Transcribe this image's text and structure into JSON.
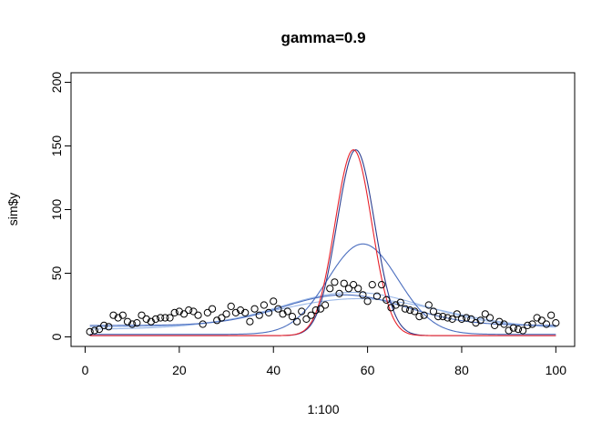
{
  "chart_data": {
    "type": "scatter",
    "title": "gamma=0.9",
    "xlabel": "1:100",
    "ylabel": "sim$y",
    "xlim": [
      -3,
      104
    ],
    "ylim": [
      -7.5,
      207.5
    ],
    "x_ticks": [
      0,
      20,
      40,
      60,
      80,
      100
    ],
    "y_ticks": [
      0,
      50,
      100,
      150,
      200
    ],
    "grid": false,
    "legend": "none",
    "colors": {
      "points": "#000000",
      "red_curve": "#e8202a",
      "dark_blue_curve": "#2b3d8f",
      "mid_blue_curve": "#4c6fbf",
      "light_blue_curve": "#9bb8e8"
    },
    "points": {
      "x": [
        1,
        2,
        3,
        4,
        5,
        6,
        7,
        8,
        9,
        10,
        11,
        12,
        13,
        14,
        15,
        16,
        17,
        18,
        19,
        20,
        21,
        22,
        23,
        24,
        25,
        26,
        27,
        28,
        29,
        30,
        31,
        32,
        33,
        34,
        35,
        36,
        37,
        38,
        39,
        40,
        41,
        42,
        43,
        44,
        45,
        46,
        47,
        48,
        49,
        50,
        51,
        52,
        53,
        54,
        55,
        56,
        57,
        58,
        59,
        60,
        61,
        62,
        63,
        64,
        65,
        66,
        67,
        68,
        69,
        70,
        71,
        72,
        73,
        74,
        75,
        76,
        77,
        78,
        79,
        80,
        81,
        82,
        83,
        84,
        85,
        86,
        87,
        88,
        89,
        90,
        91,
        92,
        93,
        94,
        95,
        96,
        97,
        98,
        99,
        100
      ],
      "y": [
        4,
        5,
        6,
        9,
        8,
        17,
        15,
        17,
        12,
        10,
        11,
        17,
        14,
        12,
        14,
        15,
        15,
        15,
        19,
        20,
        18,
        21,
        20,
        17,
        10,
        19,
        22,
        13,
        15,
        18,
        24,
        19,
        21,
        19,
        12,
        22,
        17,
        25,
        19,
        28,
        22,
        18,
        20,
        16,
        12,
        20,
        14,
        17,
        21,
        22,
        25,
        38,
        43,
        34,
        42,
        38,
        41,
        38,
        33,
        28,
        41,
        32,
        41,
        29,
        23,
        25,
        27,
        22,
        21,
        20,
        16,
        17,
        25,
        20,
        16,
        16,
        15,
        14,
        18,
        14,
        15,
        14,
        11,
        13,
        18,
        15,
        9,
        12,
        10,
        5,
        7,
        6,
        5,
        9,
        10,
        15,
        13,
        10,
        17,
        11
      ]
    },
    "series": [
      {
        "color_key": "red_curve",
        "peak_x": 57,
        "peak_y": 147,
        "baseline": 1,
        "sd": 3.9
      },
      {
        "color_key": "dark_blue_curve",
        "peak_x": 57.5,
        "peak_y": 147,
        "baseline": 1,
        "sd": 4.0
      },
      {
        "color_key": "mid_blue_curve",
        "peak_x": 59,
        "peak_y": 73,
        "baseline": 2,
        "sd": 7.5
      },
      {
        "color_key": "light_blue_curve",
        "peak_x": 57,
        "peak_y": 35,
        "baseline": 8,
        "sd": 15
      },
      {
        "color_key": "light_blue_curve",
        "peak_x": 58,
        "peak_y": 30,
        "baseline": 6,
        "sd": 18
      },
      {
        "color_key": "mid_blue_curve",
        "peak_x": 55,
        "peak_y": 33,
        "baseline": 9,
        "sd": 13
      }
    ]
  }
}
